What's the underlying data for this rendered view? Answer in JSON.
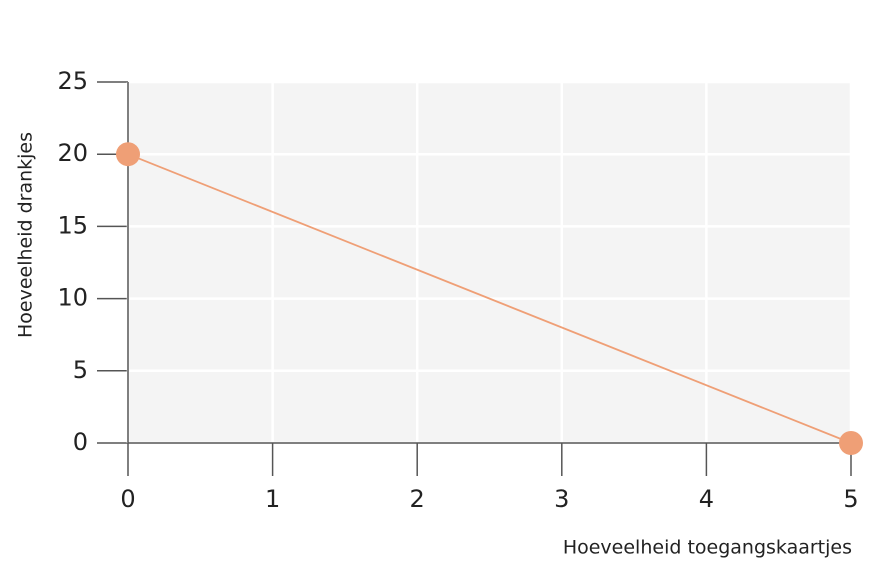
{
  "chart_data": {
    "type": "line",
    "x_label": "Hoeveelheid toegangskaartjes",
    "y_label": "Hoeveelheid drankjes",
    "x": [
      0,
      5
    ],
    "values": [
      20,
      0
    ],
    "color": "#ef9f76",
    "xlim": [
      0,
      5
    ],
    "xticks": [
      0,
      1,
      2,
      3,
      4,
      5
    ],
    "ylim": [
      0,
      25
    ],
    "yticks": [
      0,
      5,
      10,
      15,
      20,
      25
    ],
    "grid": true,
    "markers": true
  }
}
